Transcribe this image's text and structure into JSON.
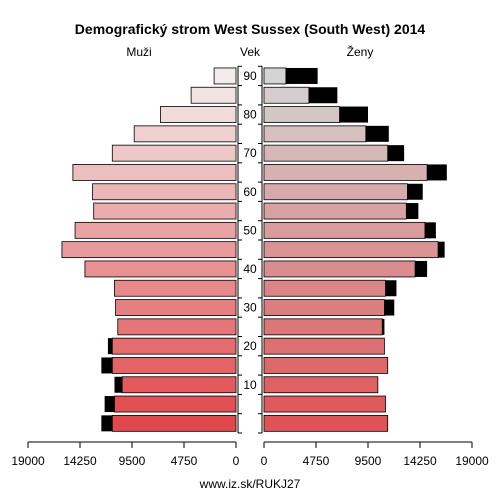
{
  "chart_data": {
    "type": "bar",
    "title": "Demografický strom West Sussex (South West) 2014",
    "left_label": "Muži",
    "center_label": "Vek",
    "right_label": "Ženy",
    "footer": "www.iz.sk/RUKJ27",
    "age_ticks": [
      "10",
      "20",
      "30",
      "40",
      "50",
      "60",
      "70",
      "80",
      "90"
    ],
    "x_ticks": {
      "left": [
        "19000",
        "14250",
        "9500",
        "4750",
        "0"
      ],
      "right": [
        "0",
        "4750",
        "9500",
        "14250",
        "19000"
      ]
    },
    "xlim": [
      0,
      19000
    ],
    "age_groups": [
      "0-4",
      "5-9",
      "10-14",
      "15-19",
      "20-24",
      "25-29",
      "30-34",
      "35-39",
      "40-44",
      "45-49",
      "50-54",
      "55-59",
      "60-64",
      "65-69",
      "70-74",
      "75-79",
      "80-84",
      "85-89",
      "90+"
    ],
    "series": [
      {
        "name": "Muži",
        "values": [
          11300,
          11100,
          10400,
          11300,
          11300,
          10800,
          11000,
          11100,
          13800,
          15900,
          14700,
          13000,
          13100,
          14900,
          11300,
          9300,
          6900,
          4100,
          2000
        ],
        "excess": [
          1000,
          900,
          700,
          1000,
          400,
          0,
          0,
          0,
          0,
          0,
          0,
          0,
          0,
          0,
          0,
          0,
          0,
          0,
          0
        ]
      },
      {
        "name": "Ženy",
        "values": [
          11300,
          11100,
          10400,
          11300,
          11000,
          10800,
          11000,
          11100,
          13800,
          15900,
          14700,
          13000,
          13100,
          14900,
          11300,
          9300,
          6900,
          4100,
          2000
        ],
        "excess": [
          0,
          0,
          0,
          0,
          0,
          200,
          900,
          1000,
          1100,
          600,
          1000,
          1100,
          1400,
          1800,
          1500,
          2100,
          2600,
          2600,
          2900
        ]
      }
    ],
    "colors": {
      "male_young": "#e0484b",
      "male_old": "#f2ecec",
      "female_young": "#df5356",
      "female_old": "#d4d4d4",
      "excess": "#000000"
    }
  }
}
